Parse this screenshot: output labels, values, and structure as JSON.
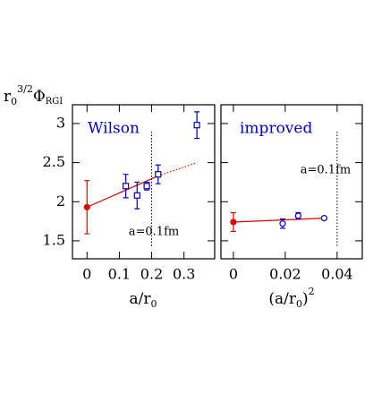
{
  "chart_data": [
    {
      "type": "scatter",
      "title": "Wilson",
      "ylabel": {
        "base": "r",
        "sub": "0",
        "sup": "3/2",
        "symbol": "Φ",
        "symsub": "RGI"
      },
      "xlabel": {
        "base": "a/r",
        "sub": "0"
      },
      "xlim": [
        -0.045,
        0.395
      ],
      "ylim": [
        1.27,
        3.24
      ],
      "xticks": [
        0,
        0.1,
        0.2,
        0.3
      ],
      "yticks": [
        1.5,
        2,
        2.5,
        3
      ],
      "ytick_labels": true,
      "series": [
        {
          "color": "#e00000",
          "marker": "filled-circle",
          "x": [
            0
          ],
          "values": [
            1.93
          ],
          "errors": [
            0.34
          ]
        },
        {
          "color": "#0000cc",
          "marker": "square",
          "x": [
            0.12,
            0.155,
            0.185,
            0.22,
            0.34
          ],
          "values": [
            2.2,
            2.08,
            2.2,
            2.35,
            2.98
          ],
          "errors": [
            0.15,
            0.17,
            0.05,
            0.12,
            0.17
          ]
        }
      ],
      "fit": {
        "color": "#e00000",
        "x": [
          0,
          0.22
        ],
        "values": [
          1.93,
          2.33
        ]
      },
      "extrapolation": {
        "color": "#e00000",
        "x": [
          0.22,
          0.34
        ],
        "values": [
          2.33,
          2.5
        ]
      },
      "marker_x": 0.2,
      "annotation": "a=0.1fm"
    },
    {
      "type": "scatter",
      "title": "improved",
      "xlabel": {
        "base": "(a/r",
        "sub": "0",
        "close": ")",
        "sup": "2"
      },
      "xlim": [
        -0.0048,
        0.0497
      ],
      "ylim": [
        1.27,
        3.24
      ],
      "xticks": [
        0,
        0.02,
        0.04
      ],
      "yticks": [
        1.5,
        2,
        2.5,
        3
      ],
      "ytick_labels": false,
      "series": [
        {
          "color": "#e00000",
          "marker": "filled-circle",
          "x": [
            0
          ],
          "values": [
            1.74
          ],
          "errors": [
            0.12
          ]
        },
        {
          "color": "#0000cc",
          "marker": "circle",
          "x": [
            0.019,
            0.025,
            0.035
          ],
          "values": [
            1.72,
            1.82,
            1.79
          ],
          "errors": [
            0.06,
            0.04,
            0.02
          ]
        }
      ],
      "fit": {
        "color": "#e00000",
        "x": [
          0,
          0.035
        ],
        "values": [
          1.74,
          1.79
        ]
      },
      "marker_x": 0.04,
      "annotation": "a=0.1fm"
    }
  ]
}
